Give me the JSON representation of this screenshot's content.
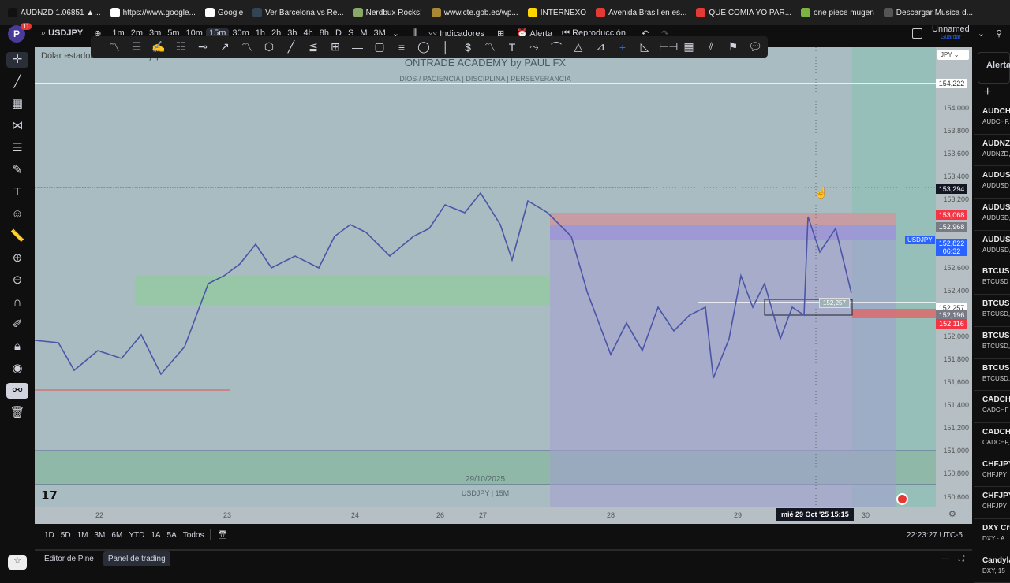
{
  "bookmarks": [
    "AUDNZD 1.06851 ▲...",
    "https://www.google...",
    "Google",
    "Ver Barcelona vs Re...",
    "Nerdbux Rocks!",
    "www.cte.gob.ec/wp...",
    "INTERNEXO",
    "Avenida Brasil en es...",
    "QUE COMIA YO PAR...",
    "one piece mugen",
    "Descargar Musica d..."
  ],
  "topbar": {
    "avatar": "P",
    "notifications": "11",
    "symbol": "USDJPY",
    "timeframes": [
      "1m",
      "2m",
      "3m",
      "5m",
      "10m",
      "15m",
      "30m",
      "1h",
      "2h",
      "3h",
      "4h",
      "8h",
      "D",
      "S",
      "M",
      "3M"
    ],
    "active_timeframe": "15m",
    "indicators": "Indicadores",
    "alert": "Alerta",
    "replay": "Reproducción",
    "layout_name": "Unnamed",
    "save": "Guardar"
  },
  "chart": {
    "symbol_title": "Dólar estadounidense / Yen japonés · 15 · OANDA",
    "watermark_title": "ONTRADE ACADEMY by PAUL FX",
    "watermark_sub": "DIOS / PACIENCIA  |  DISCIPLINA  |  PERSEVERANCIA",
    "watermark_date": "29/10/2025",
    "watermark_symbol": "USDJPY | 15M",
    "currency": "JPY",
    "price_box_label": "152,257",
    "crosshair_time": "mié 29 Oct '25   15:15",
    "symbol_tag": "USDJPY"
  },
  "price_axis": {
    "ticks": [
      "154,000",
      "153,800",
      "153,600",
      "153,400",
      "153,200",
      "152,600",
      "152,400",
      "152,000",
      "151,800",
      "151,600",
      "151,400",
      "151,200",
      "151,000",
      "150,800",
      "150,600"
    ],
    "tags": [
      {
        "value": "154,222",
        "color": "#ffffff"
      },
      {
        "value": "153,294",
        "color": "#131722"
      },
      {
        "value": "153,068",
        "color": "#f23645"
      },
      {
        "value": "152,968",
        "color": "#787b86"
      },
      {
        "value": "152,822",
        "value2": "06:32",
        "color": "#2962ff"
      },
      {
        "value": "152,257",
        "color": "#ffffff"
      },
      {
        "value": "152,196",
        "color": "#787b86"
      },
      {
        "value": "152,116",
        "color": "#f23645"
      }
    ]
  },
  "time_axis": [
    "22",
    "23",
    "24",
    "26",
    "27",
    "28",
    "29",
    "30"
  ],
  "ranges": [
    "1D",
    "5D",
    "1M",
    "3M",
    "6M",
    "YTD",
    "1A",
    "5A",
    "Todos"
  ],
  "clock": "22:23:27 UTC-5",
  "panels": [
    "Editor de Pine",
    "Panel de trading"
  ],
  "watchlist": {
    "header": "Alertas",
    "items": [
      [
        "AUDCHF",
        "AUDCHF,"
      ],
      [
        "AUDNZD",
        "AUDNZD,"
      ],
      [
        "AUDUSD",
        "AUDUSD"
      ],
      [
        "AUDUSD",
        "AUDUSD,"
      ],
      [
        "AUDUSD",
        "AUDUSD,"
      ],
      [
        "BTCUSD",
        "BTCUSD"
      ],
      [
        "BTCUSD",
        "BTCUSD,"
      ],
      [
        "BTCUSD",
        "BTCUSD,"
      ],
      [
        "BTCUSD",
        "BTCUSD,"
      ],
      [
        "CADCHF",
        "CADCHF"
      ],
      [
        "CADCHF",
        "CADCHF,"
      ],
      [
        "CHFJPY",
        "CHFJPY"
      ],
      [
        "CHFJPY",
        "CHFJPY"
      ],
      [
        "DXY Cru",
        "DXY · A"
      ],
      [
        "Candyla",
        "DXY, 15"
      ]
    ]
  }
}
